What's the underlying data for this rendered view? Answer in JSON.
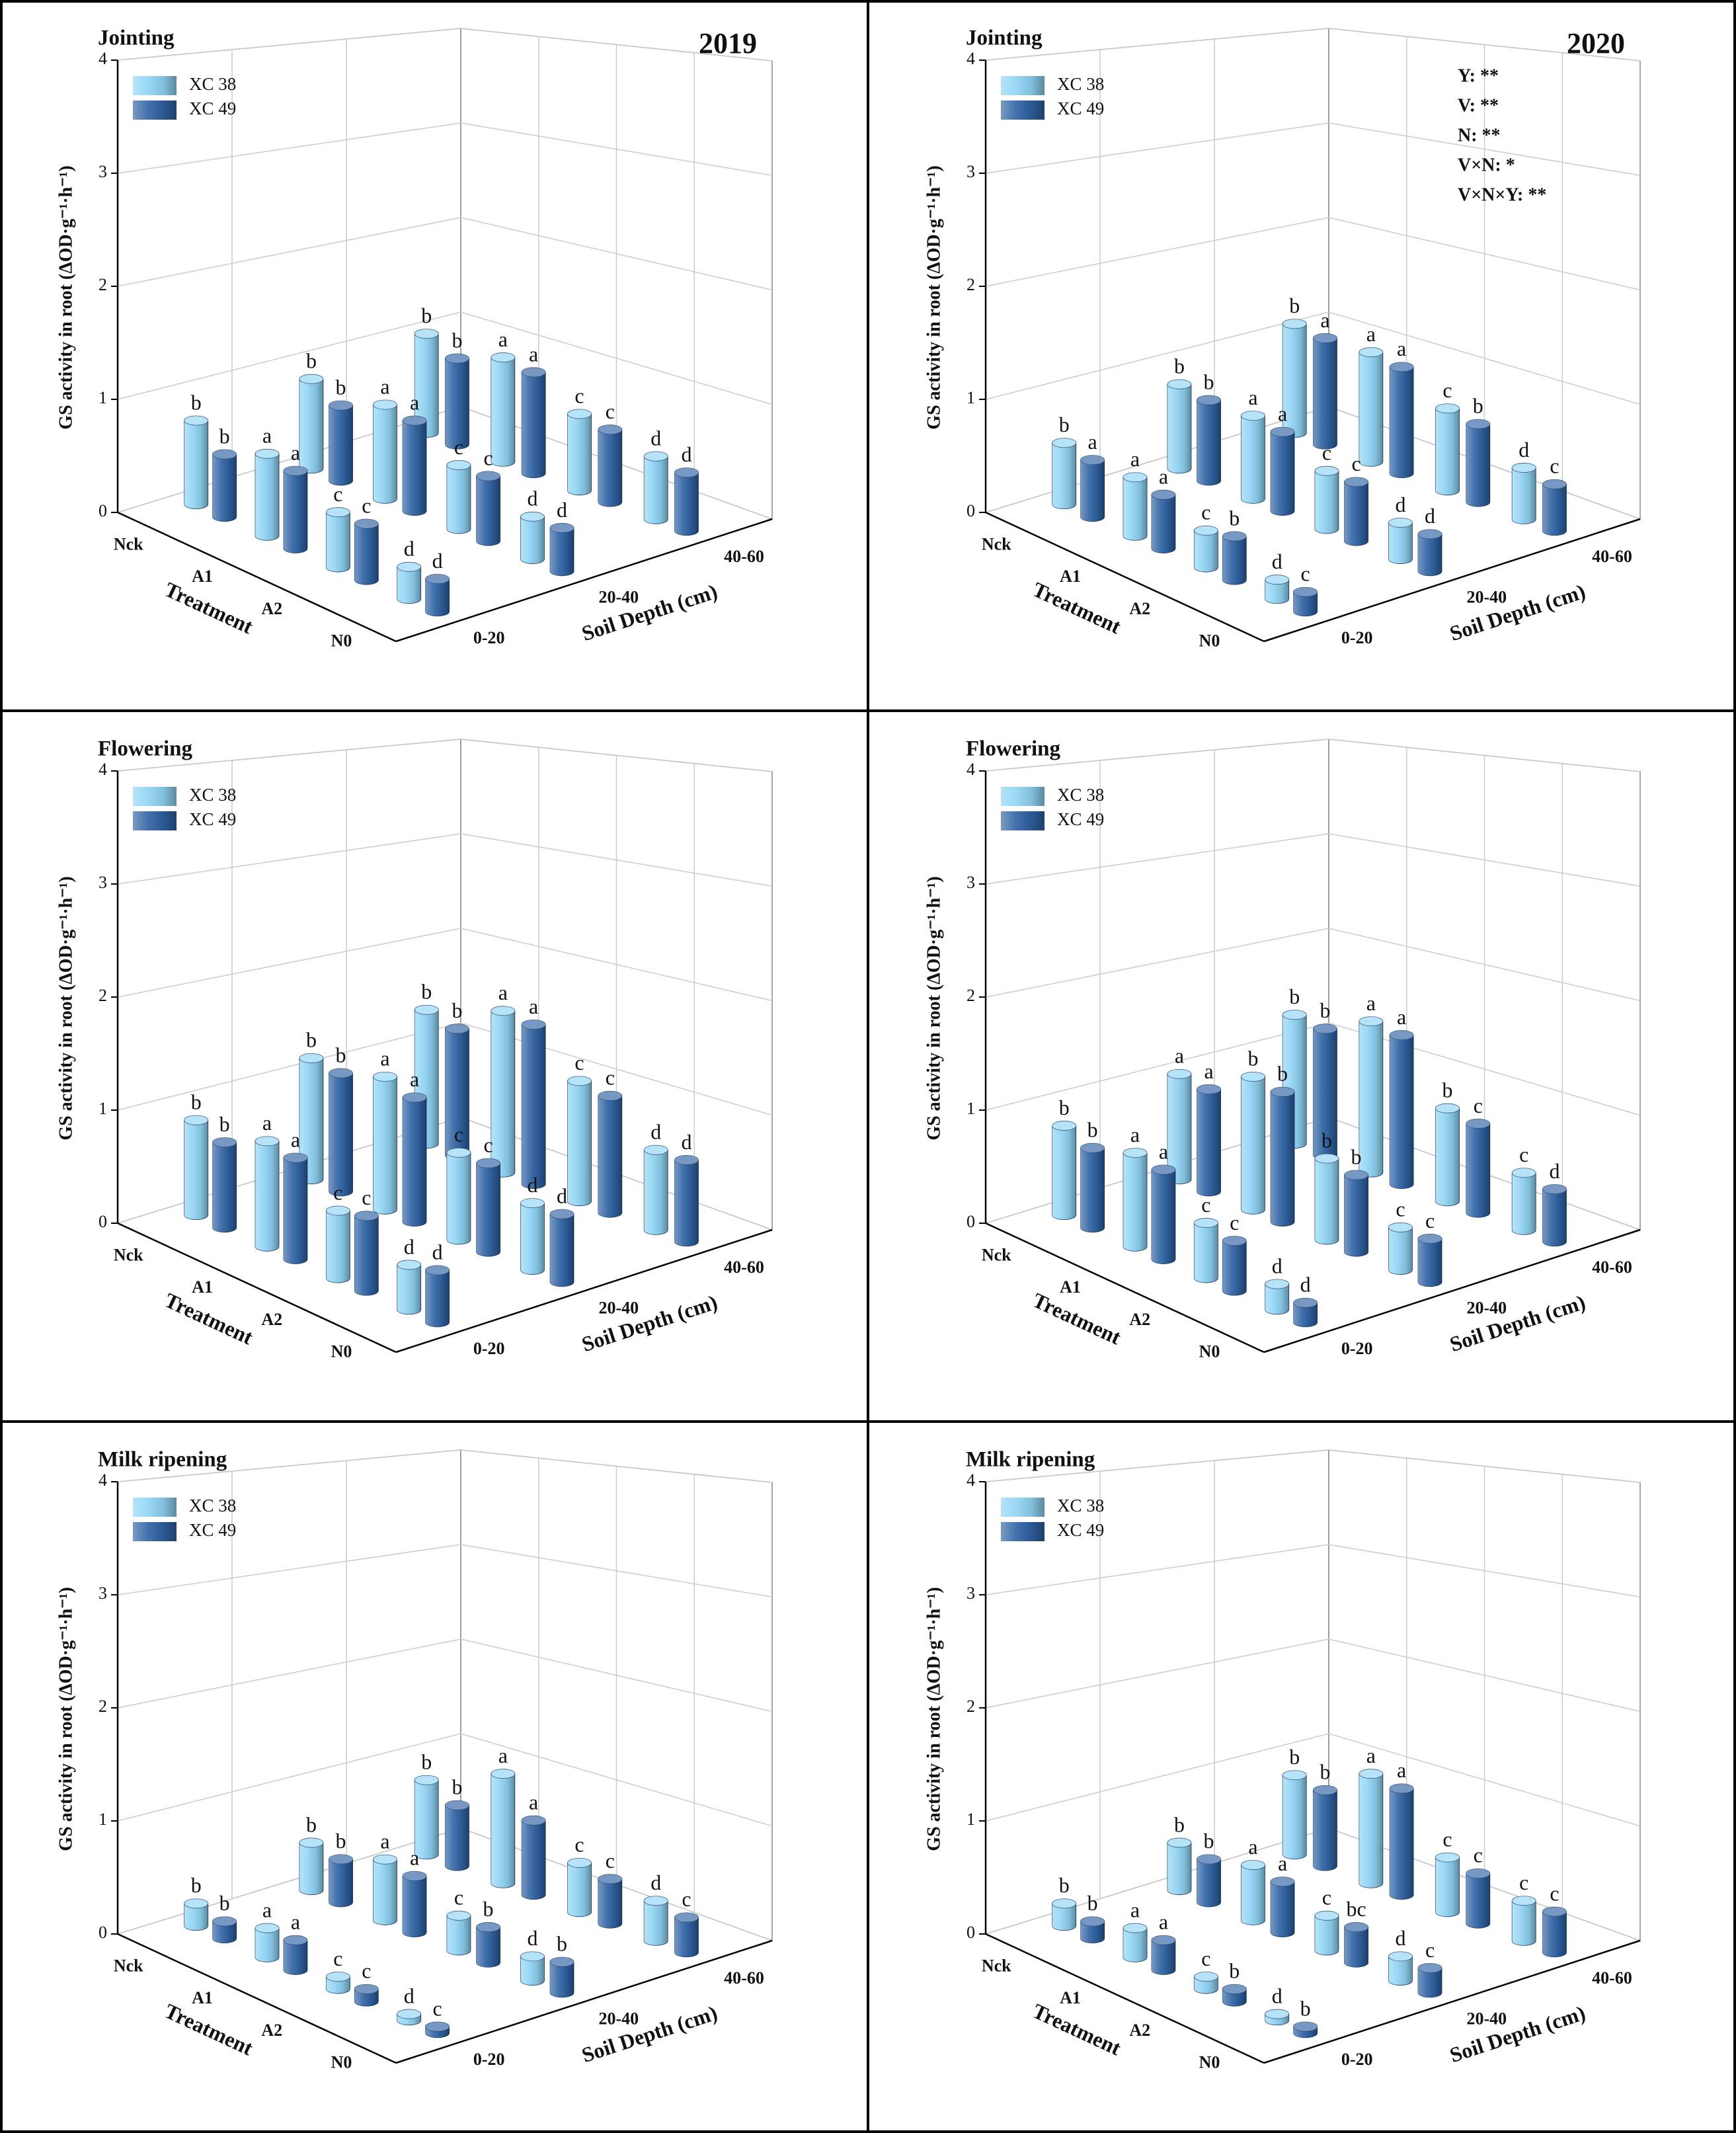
{
  "chart_data": [
    {
      "type": "bar3d",
      "title": "Jointing",
      "year": "2019",
      "zlabel": "GS activity in root (ΔOD·g⁻¹·h⁻¹)",
      "xlabel": "Treatment",
      "ylabel": "Soil Depth (cm)",
      "treatments": [
        "Nck",
        "A1",
        "A2",
        "N0"
      ],
      "depths": [
        "0-20",
        "20-40",
        "40-60"
      ],
      "zlim": [
        0,
        4
      ],
      "zticks": [
        0,
        1,
        2,
        3,
        4
      ],
      "grid": true,
      "series": [
        {
          "name": "XC 38",
          "color": "#8fd4f4",
          "values": [
            [
              0.75,
              0.85,
              1.0
            ],
            [
              0.7,
              0.85,
              1.0
            ],
            [
              0.45,
              0.55,
              0.7
            ],
            [
              0.25,
              0.35,
              0.55
            ]
          ],
          "letters": [
            [
              "b",
              "b",
              "b"
            ],
            [
              "a",
              "a",
              "a"
            ],
            [
              "c",
              "c",
              "c"
            ],
            [
              "d",
              "d",
              "d"
            ]
          ]
        },
        {
          "name": "XC 49",
          "color": "#2f62a3",
          "values": [
            [
              0.55,
              0.7,
              0.85
            ],
            [
              0.65,
              0.8,
              0.95
            ],
            [
              0.45,
              0.55,
              0.65
            ],
            [
              0.25,
              0.35,
              0.5
            ]
          ],
          "letters": [
            [
              "b",
              "b",
              "b"
            ],
            [
              "a",
              "a",
              "a"
            ],
            [
              "c",
              "c",
              "c"
            ],
            [
              "d",
              "d",
              "d"
            ]
          ]
        }
      ]
    },
    {
      "type": "bar3d",
      "title": "Jointing",
      "year": "2020",
      "zlabel": "GS activity in root (ΔOD·g⁻¹·h⁻¹)",
      "xlabel": "Treatment",
      "ylabel": "Soil Depth (cm)",
      "treatments": [
        "Nck",
        "A1",
        "A2",
        "N0"
      ],
      "depths": [
        "0-20",
        "20-40",
        "40-60"
      ],
      "zlim": [
        0,
        4
      ],
      "zticks": [
        0,
        1,
        2,
        3,
        4
      ],
      "grid": true,
      "annotations": [
        "Y: **",
        "V: **",
        "N: **",
        "V×N: *",
        "V×N×Y: **"
      ],
      "series": [
        {
          "name": "XC 38",
          "color": "#8fd4f4",
          "values": [
            [
              0.55,
              0.8,
              1.1
            ],
            [
              0.5,
              0.75,
              1.05
            ],
            [
              0.3,
              0.5,
              0.75
            ],
            [
              0.15,
              0.3,
              0.45
            ]
          ],
          "letters": [
            [
              "b",
              "b",
              "b"
            ],
            [
              "a",
              "a",
              "a"
            ],
            [
              "c",
              "c",
              "c"
            ],
            [
              "d",
              "d",
              "d"
            ]
          ]
        },
        {
          "name": "XC 49",
          "color": "#2f62a3",
          "values": [
            [
              0.5,
              0.75,
              1.05
            ],
            [
              0.45,
              0.7,
              1.0
            ],
            [
              0.35,
              0.5,
              0.7
            ],
            [
              0.15,
              0.3,
              0.4
            ]
          ],
          "letters": [
            [
              "a",
              "b",
              "a"
            ],
            [
              "a",
              "a",
              "a"
            ],
            [
              "b",
              "c",
              "b"
            ],
            [
              "c",
              "d",
              "c"
            ]
          ]
        }
      ]
    },
    {
      "type": "bar3d",
      "title": "Flowering",
      "zlabel": "GS activity in root (ΔOD·g⁻¹·h⁻¹)",
      "xlabel": "Treatment",
      "ylabel": "Soil Depth (cm)",
      "treatments": [
        "Nck",
        "A1",
        "A2",
        "N0"
      ],
      "depths": [
        "0-20",
        "20-40",
        "40-60"
      ],
      "zlim": [
        0,
        4
      ],
      "zticks": [
        0,
        1,
        2,
        3,
        4
      ],
      "grid": true,
      "series": [
        {
          "name": "XC 38",
          "color": "#8fd4f4",
          "values": [
            [
              0.85,
              1.15,
              1.35
            ],
            [
              0.9,
              1.2,
              1.55
            ],
            [
              0.55,
              0.75,
              1.1
            ],
            [
              0.35,
              0.55,
              0.7
            ]
          ],
          "letters": [
            [
              "b",
              "b",
              "b"
            ],
            [
              "a",
              "a",
              "a"
            ],
            [
              "c",
              "c",
              "c"
            ],
            [
              "d",
              "d",
              "d"
            ]
          ]
        },
        {
          "name": "XC 49",
          "color": "#2f62a3",
          "values": [
            [
              0.75,
              1.1,
              1.25
            ],
            [
              0.85,
              1.1,
              1.5
            ],
            [
              0.6,
              0.75,
              1.05
            ],
            [
              0.4,
              0.55,
              0.7
            ]
          ],
          "letters": [
            [
              "b",
              "b",
              "b"
            ],
            [
              "a",
              "a",
              "a"
            ],
            [
              "c",
              "c",
              "c"
            ],
            [
              "d",
              "d",
              "d"
            ]
          ]
        }
      ]
    },
    {
      "type": "bar3d",
      "title": "Flowering",
      "zlabel": "GS activity in root (ΔOD·g⁻¹·h⁻¹)",
      "xlabel": "Treatment",
      "ylabel": "Soil Depth (cm)",
      "treatments": [
        "Nck",
        "A1",
        "A2",
        "N0"
      ],
      "depths": [
        "0-20",
        "20-40",
        "40-60"
      ],
      "zlim": [
        0,
        4
      ],
      "zticks": [
        0,
        1,
        2,
        3,
        4
      ],
      "grid": true,
      "series": [
        {
          "name": "XC 38",
          "color": "#8fd4f4",
          "values": [
            [
              0.8,
              1.0,
              1.3
            ],
            [
              0.8,
              1.2,
              1.45
            ],
            [
              0.45,
              0.7,
              0.85
            ],
            [
              0.2,
              0.35,
              0.5
            ]
          ],
          "letters": [
            [
              "b",
              "a",
              "b"
            ],
            [
              "a",
              "b",
              "a"
            ],
            [
              "c",
              "b",
              "b"
            ],
            [
              "d",
              "c",
              "c"
            ]
          ]
        },
        {
          "name": "XC 49",
          "color": "#2f62a3",
          "values": [
            [
              0.7,
              0.95,
              1.25
            ],
            [
              0.75,
              1.15,
              1.4
            ],
            [
              0.4,
              0.65,
              0.8
            ],
            [
              0.15,
              0.35,
              0.45
            ]
          ],
          "letters": [
            [
              "b",
              "a",
              "b"
            ],
            [
              "a",
              "b",
              "a"
            ],
            [
              "c",
              "b",
              "c"
            ],
            [
              "d",
              "c",
              "d"
            ]
          ]
        }
      ]
    },
    {
      "type": "bar3d",
      "title": "Milk ripening",
      "zlabel": "GS activity in root (ΔOD·g⁻¹·h⁻¹)",
      "xlabel": "Treatment",
      "ylabel": "Soil Depth (cm)",
      "treatments": [
        "Nck",
        "A1",
        "A2",
        "N0"
      ],
      "depths": [
        "0-20",
        "20-40",
        "40-60"
      ],
      "zlim": [
        0,
        4
      ],
      "zticks": [
        0,
        1,
        2,
        3,
        4
      ],
      "grid": true,
      "series": [
        {
          "name": "XC 38",
          "color": "#8fd4f4",
          "values": [
            [
              0.2,
              0.45,
              0.75
            ],
            [
              0.25,
              0.55,
              1.05
            ],
            [
              0.1,
              0.3,
              0.45
            ],
            [
              0.05,
              0.2,
              0.35
            ]
          ],
          "letters": [
            [
              "b",
              "b",
              "b"
            ],
            [
              "a",
              "a",
              "a"
            ],
            [
              "c",
              "c",
              "c"
            ],
            [
              "d",
              "d",
              "d"
            ]
          ]
        },
        {
          "name": "XC 49",
          "color": "#2f62a3",
          "values": [
            [
              0.15,
              0.4,
              0.6
            ],
            [
              0.25,
              0.5,
              0.7
            ],
            [
              0.1,
              0.3,
              0.4
            ],
            [
              0.05,
              0.25,
              0.3
            ]
          ],
          "letters": [
            [
              "b",
              "b",
              "b"
            ],
            [
              "a",
              "a",
              "a"
            ],
            [
              "c",
              "b",
              "c"
            ],
            [
              "c",
              "b",
              "c"
            ]
          ]
        }
      ]
    },
    {
      "type": "bar3d",
      "title": "Milk ripening",
      "zlabel": "GS activity in root (ΔOD·g⁻¹·h⁻¹)",
      "xlabel": "Treatment",
      "ylabel": "Soil Depth (cm)",
      "treatments": [
        "Nck",
        "A1",
        "A2",
        "N0"
      ],
      "depths": [
        "0-20",
        "20-40",
        "40-60"
      ],
      "zlim": [
        0,
        4
      ],
      "zticks": [
        0,
        1,
        2,
        3,
        4
      ],
      "grid": true,
      "series": [
        {
          "name": "XC 38",
          "color": "#8fd4f4",
          "values": [
            [
              0.2,
              0.45,
              0.8
            ],
            [
              0.25,
              0.5,
              1.05
            ],
            [
              0.1,
              0.3,
              0.5
            ],
            [
              0.05,
              0.2,
              0.35
            ]
          ],
          "letters": [
            [
              "b",
              "b",
              "b"
            ],
            [
              "a",
              "a",
              "a"
            ],
            [
              "c",
              "c",
              "c"
            ],
            [
              "d",
              "d",
              "c"
            ]
          ]
        },
        {
          "name": "XC 49",
          "color": "#2f62a3",
          "values": [
            [
              0.15,
              0.4,
              0.75
            ],
            [
              0.25,
              0.45,
              1.0
            ],
            [
              0.1,
              0.3,
              0.45
            ],
            [
              0.05,
              0.2,
              0.35
            ]
          ],
          "letters": [
            [
              "b",
              "b",
              "b"
            ],
            [
              "a",
              "a",
              "a"
            ],
            [
              "b",
              "bc",
              "c"
            ],
            [
              "b",
              "c",
              "c"
            ]
          ]
        }
      ]
    }
  ]
}
